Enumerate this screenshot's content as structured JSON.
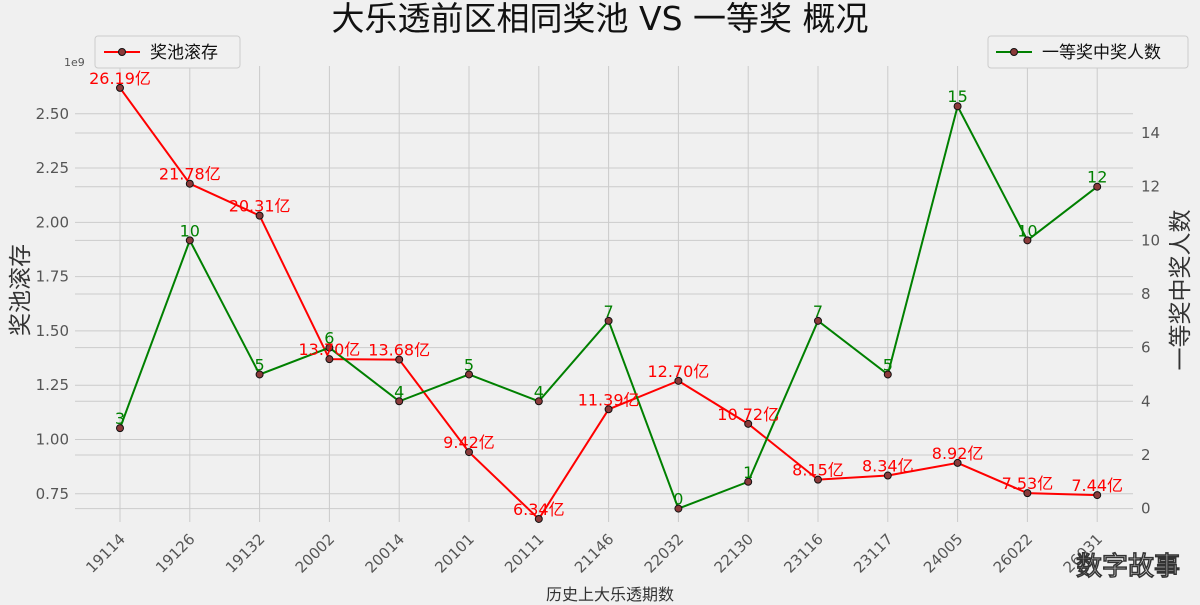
{
  "chart_data": {
    "type": "line",
    "title": "大乐透前区相同奖池 VS 一等奖 概况",
    "xlabel": "历史上大乐透期数",
    "ylabel_left": "奖池滚存",
    "ylabel_right": "一等奖中奖人数",
    "left_axis_multiplier": "1e9",
    "categories": [
      "19114",
      "19126",
      "19132",
      "20002",
      "20014",
      "20101",
      "20111",
      "21146",
      "22032",
      "22130",
      "23116",
      "23117",
      "24005",
      "26022",
      "26031"
    ],
    "left_ticks": [
      "0.75",
      "1.00",
      "1.25",
      "1.50",
      "1.75",
      "2.00",
      "2.25",
      "2.50"
    ],
    "right_ticks": [
      "0",
      "2",
      "4",
      "6",
      "8",
      "10",
      "12",
      "14"
    ],
    "ylim_left": [
      0.62,
      2.72
    ],
    "ylim_right": [
      -0.5,
      16.5
    ],
    "grid": true,
    "series": [
      {
        "name": "奖池滚存",
        "axis": "left",
        "color": "#ff0000",
        "values": [
          2.619,
          2.178,
          2.031,
          1.37,
          1.368,
          0.942,
          0.634,
          1.139,
          1.27,
          1.072,
          0.815,
          0.834,
          0.892,
          0.753,
          0.744
        ],
        "labels": [
          "26.19亿",
          "21.78亿",
          "20.31亿",
          "13.70亿",
          "13.68亿",
          "9.42亿",
          "6.34亿",
          "11.39亿",
          "12.70亿",
          "10.72亿",
          "8.15亿",
          "8.34亿",
          "8.92亿",
          "7.53亿",
          "7.44亿"
        ],
        "legend": "top-left"
      },
      {
        "name": "一等奖中奖人数",
        "axis": "right",
        "color": "#008000",
        "values": [
          3,
          10,
          5,
          6,
          4,
          5,
          4,
          7,
          0,
          1,
          7,
          5,
          15,
          10,
          12
        ],
        "labels": [
          "3",
          "10",
          "5",
          "6",
          "4",
          "5",
          "4",
          "7",
          "0",
          "1",
          "7",
          "5",
          "15",
          "10",
          "12"
        ],
        "legend": "top-right"
      }
    ]
  },
  "watermark": "数字故事"
}
